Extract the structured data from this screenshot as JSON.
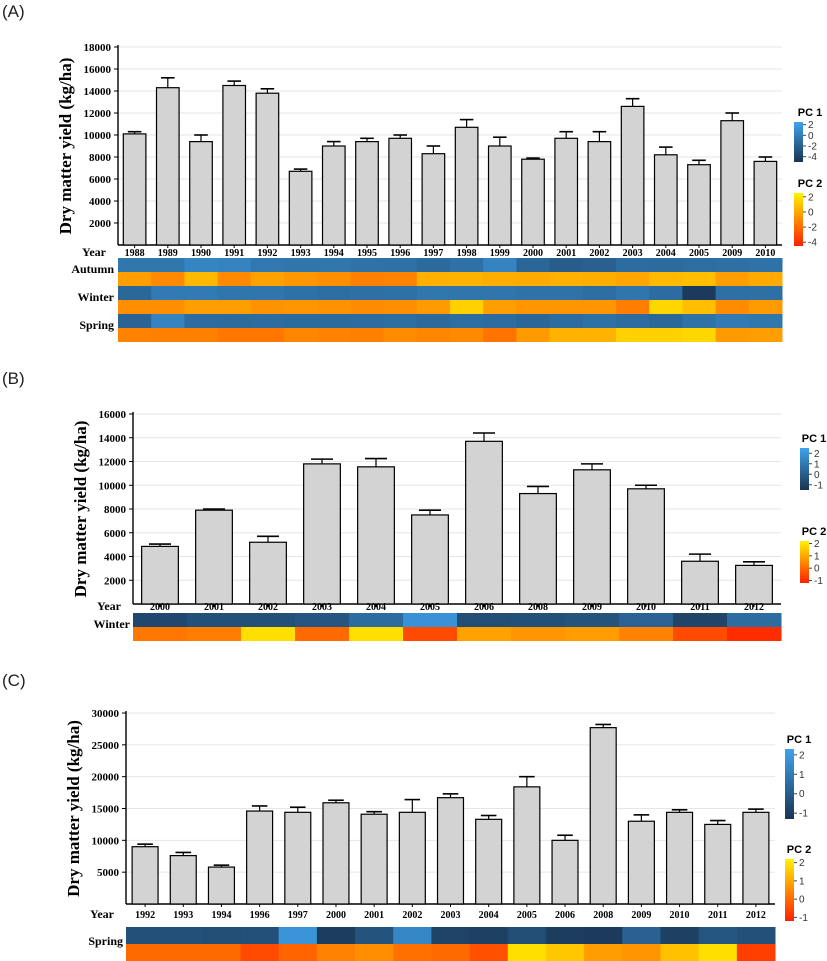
{
  "chart_data": [
    {
      "panel": "(A)",
      "type": "bar",
      "ylabel": "Dry matter yield (kg/ha)",
      "xlabel": "Year",
      "ylim": [
        0,
        18000
      ],
      "yticks": [
        2000,
        4000,
        6000,
        8000,
        10000,
        12000,
        14000,
        16000,
        18000
      ],
      "categories": [
        "1988",
        "1989",
        "1990",
        "1991",
        "1992",
        "1993",
        "1994",
        "1995",
        "1996",
        "1997",
        "1998",
        "1999",
        "2000",
        "2001",
        "2002",
        "2003",
        "2004",
        "2005",
        "2009",
        "2010"
      ],
      "values": [
        10100,
        14300,
        9400,
        14500,
        13800,
        6700,
        9000,
        9400,
        9700,
        8300,
        10700,
        9000,
        7800,
        9700,
        9400,
        12600,
        8200,
        7300,
        11300,
        7600
      ],
      "errors": [
        200,
        900,
        600,
        400,
        400,
        200,
        400,
        300,
        300,
        700,
        700,
        800,
        100,
        600,
        900,
        700,
        700,
        400,
        700,
        400
      ],
      "legends": [
        {
          "title": "PC 1",
          "ticks": [
            "2",
            "0",
            "-2",
            "-4"
          ],
          "tick_values": [
            2,
            0,
            -2,
            -4
          ],
          "range": [
            -5,
            2.5
          ],
          "colors": [
            "#3fa3ec",
            "#1a3452"
          ]
        },
        {
          "title": "PC 2",
          "ticks": [
            "2",
            "0",
            "-2",
            "-4"
          ],
          "tick_values": [
            2,
            0,
            -2,
            -4
          ],
          "range": [
            -4.5,
            2.5
          ],
          "colors": [
            "#fff200",
            "#ff2000"
          ]
        }
      ],
      "heat_rows": [
        {
          "label": "Autumn",
          "pc1": [
            -0.5,
            -0.5,
            0.5,
            0.3,
            -0.4,
            -0.6,
            -0.5,
            -0.8,
            -0.9,
            -1.4,
            -0.9,
            0.4,
            -1.6,
            -2.2,
            -2.0,
            -1.2,
            -1.3,
            -1.1,
            -1.0,
            -0.8
          ],
          "pc2": [
            -0.3,
            -1.0,
            0.6,
            -1.0,
            -0.2,
            -0.5,
            -0.8,
            -1.3,
            -1.2,
            0.3,
            0.4,
            0.2,
            0.1,
            0.3,
            0.2,
            0.0,
            0.6,
            0.8,
            -0.3,
            0.1
          ]
        },
        {
          "label": "Winter",
          "pc1": [
            -1.5,
            -0.3,
            -0.3,
            -0.6,
            -0.6,
            -0.9,
            -1.1,
            -1.0,
            -0.9,
            -0.5,
            -0.6,
            -0.6,
            -0.8,
            -0.8,
            -1.1,
            -0.6,
            -1.2,
            -4.5,
            -1.0,
            -1.0
          ],
          "pc2": [
            -0.8,
            -0.8,
            -0.3,
            -0.3,
            -0.7,
            -0.6,
            -0.7,
            -0.9,
            -0.8,
            -0.4,
            1.4,
            -0.3,
            -0.6,
            -0.6,
            -0.6,
            -1.4,
            1.6,
            0.8,
            -0.9,
            -0.4
          ]
        },
        {
          "label": "Spring",
          "pc1": [
            -1.8,
            0.4,
            -1.2,
            -1.3,
            -1.2,
            -1.3,
            -1.3,
            -1.2,
            -1.1,
            -1.4,
            -1.1,
            -1.2,
            -1.6,
            -1.2,
            -0.9,
            -1.2,
            -1.5,
            -0.8,
            -0.3,
            -0.5
          ],
          "pc2": [
            -1.2,
            -1.3,
            -1.3,
            -1.6,
            -1.6,
            -1.1,
            -1.2,
            -1.3,
            -0.9,
            -1.1,
            -1.0,
            -1.7,
            -0.4,
            0.4,
            0.4,
            1.4,
            1.4,
            1.6,
            -0.4,
            -0.3
          ]
        }
      ]
    },
    {
      "panel": "(B)",
      "type": "bar",
      "ylabel": "Dry matter yield (kg/ha)",
      "xlabel": "Year",
      "ylim": [
        0,
        16000
      ],
      "yticks": [
        2000,
        4000,
        6000,
        8000,
        10000,
        12000,
        14000,
        16000
      ],
      "categories": [
        "2000",
        "2001",
        "2002",
        "2003",
        "2004",
        "2005",
        "2006",
        "2008",
        "2009",
        "2010",
        "2011",
        "2012"
      ],
      "values": [
        4850,
        7900,
        5200,
        11800,
        11550,
        7500,
        13700,
        9300,
        11300,
        9700,
        3600,
        3250
      ],
      "errors": [
        200,
        100,
        500,
        400,
        700,
        400,
        700,
        600,
        500,
        300,
        600,
        300
      ],
      "legends": [
        {
          "title": "PC 1",
          "ticks": [
            "2",
            "1",
            "0",
            "-1"
          ],
          "tick_values": [
            2,
            1,
            0,
            -1
          ],
          "range": [
            -1.5,
            2.5
          ],
          "colors": [
            "#3fa3ec",
            "#1a3452"
          ]
        },
        {
          "title": "PC 2",
          "ticks": [
            "2",
            "1",
            "0",
            "-1"
          ],
          "tick_values": [
            2,
            1,
            0,
            -1
          ],
          "range": [
            -1.2,
            2.2
          ],
          "colors": [
            "#fff200",
            "#ff2000"
          ]
        }
      ],
      "heat_rows": [
        {
          "label": "Winter",
          "pc1": [
            -0.8,
            -0.5,
            -0.5,
            -0.3,
            0.5,
            1.9,
            -0.6,
            -0.5,
            -0.4,
            0.2,
            -0.9,
            0.5
          ],
          "pc2": [
            0.2,
            0.3,
            1.9,
            0.0,
            1.9,
            -0.5,
            0.9,
            0.7,
            0.8,
            0.4,
            -0.5,
            -1.0
          ]
        }
      ]
    },
    {
      "panel": "(C)",
      "type": "bar",
      "ylabel": "Dry matter yield (kg/ha)",
      "xlabel": "Year",
      "ylim": [
        0,
        30000
      ],
      "yticks": [
        5000,
        10000,
        15000,
        20000,
        25000,
        30000
      ],
      "categories": [
        "1992",
        "1993",
        "1994",
        "1996",
        "1997",
        "2000",
        "2001",
        "2002",
        "2003",
        "2004",
        "2005",
        "2006",
        "2008",
        "2009",
        "2010",
        "2011",
        "2012"
      ],
      "values": [
        9000,
        7600,
        5800,
        14600,
        14400,
        15900,
        14100,
        14400,
        16700,
        13300,
        18400,
        10000,
        27700,
        13000,
        14400,
        12500,
        14400
      ],
      "errors": [
        400,
        500,
        300,
        800,
        800,
        400,
        400,
        2000,
        600,
        600,
        1600,
        800,
        500,
        1000,
        400,
        600,
        500
      ],
      "legends": [
        {
          "title": "PC 1",
          "ticks": [
            "2",
            "1",
            "0",
            "-1"
          ],
          "tick_values": [
            2,
            1,
            0,
            -1
          ],
          "range": [
            -1.3,
            2.3
          ],
          "colors": [
            "#3fa3ec",
            "#1a3452"
          ]
        },
        {
          "title": "PC 2",
          "ticks": [
            "2",
            "1",
            "0",
            "-1"
          ],
          "tick_values": [
            2,
            1,
            0,
            -1
          ],
          "range": [
            -1.2,
            2.2
          ],
          "colors": [
            "#fff200",
            "#ff2000"
          ]
        }
      ],
      "heat_rows": [
        {
          "label": "Spring",
          "pc1": [
            -0.4,
            -0.4,
            -0.5,
            -0.4,
            1.8,
            -1.0,
            -0.3,
            1.4,
            -0.8,
            -0.9,
            -0.5,
            -1.0,
            -1.1,
            0.2,
            -0.9,
            -0.2,
            -0.4
          ],
          "pc2": [
            0.0,
            0.0,
            0.0,
            -0.5,
            -0.1,
            0.4,
            0.6,
            0.1,
            0.0,
            -0.4,
            1.9,
            1.5,
            0.8,
            0.7,
            1.4,
            1.9,
            -0.7
          ]
        }
      ]
    }
  ]
}
